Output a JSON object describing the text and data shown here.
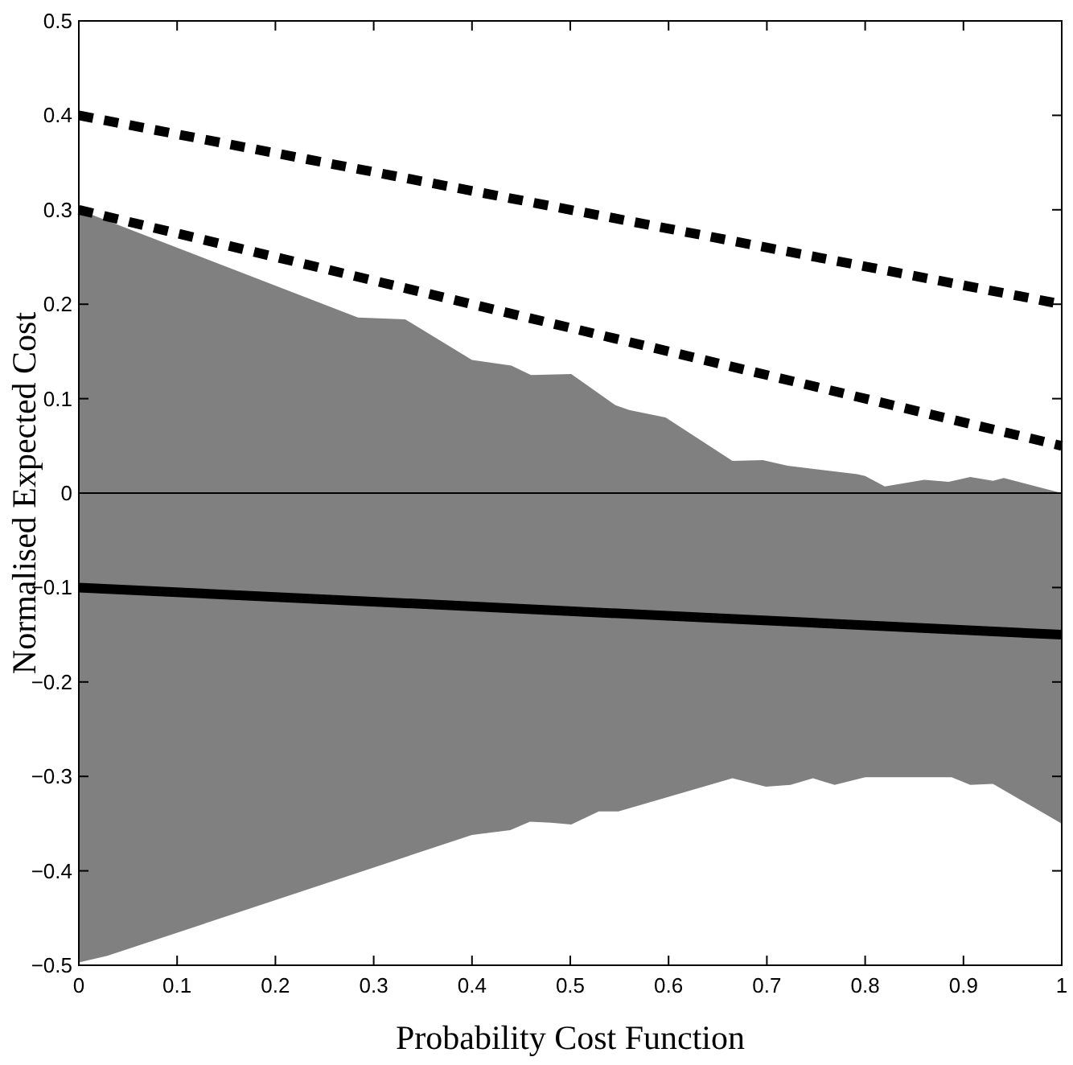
{
  "chart_data": {
    "type": "line",
    "xlabel": "Probability Cost Function",
    "ylabel": "Normalised Expected Cost",
    "xlim": [
      0,
      1
    ],
    "ylim": [
      -0.5,
      0.5
    ],
    "xticks": [
      0,
      0.1,
      0.2,
      0.3,
      0.4,
      0.5,
      0.6,
      0.7,
      0.8,
      0.9,
      1
    ],
    "yticks": [
      -0.5,
      -0.4,
      -0.3,
      -0.2,
      -0.1,
      0,
      0.1,
      0.2,
      0.3,
      0.4,
      0.5
    ],
    "grid": false,
    "series": [
      {
        "type": "area",
        "color": "#808080",
        "x": [
          0,
          0.284,
          0.332,
          0.4,
          0.44,
          0.46,
          0.501,
          0.546,
          0.56,
          0.597,
          0.665,
          0.696,
          0.721,
          0.792,
          0.8,
          0.82,
          0.837,
          0.86,
          0.885,
          0.907,
          0.93,
          0.941,
          1
        ],
        "values": [
          0.3,
          0.186,
          0.184,
          0.141,
          0.135,
          0.125,
          0.126,
          0.093,
          0.088,
          0.08,
          0.034,
          0.035,
          0.029,
          0.02,
          0.018,
          0.007,
          0.01,
          0.014,
          0.012,
          0.017,
          0.013,
          0.016,
          0
        ]
      },
      {
        "type": "area",
        "color": "#808080",
        "x": [
          0,
          0.029,
          0.4,
          0.439,
          0.459,
          0.48,
          0.501,
          0.529,
          0.549,
          0.665,
          0.699,
          0.724,
          0.747,
          0.769,
          0.8,
          0.888,
          0.907,
          0.93,
          1
        ],
        "values": [
          -0.497,
          -0.49,
          -0.362,
          -0.357,
          -0.348,
          -0.349,
          -0.351,
          -0.337,
          -0.337,
          -0.302,
          -0.311,
          -0.309,
          -0.302,
          -0.309,
          -0.301,
          -0.301,
          -0.309,
          -0.308,
          -0.35
        ]
      },
      {
        "color": "#000000",
        "line_style": "dashed",
        "x": [
          0,
          1
        ],
        "values": [
          0.4,
          0.2
        ]
      },
      {
        "color": "#000000",
        "line_style": "dashed",
        "x": [
          0,
          1
        ],
        "values": [
          0.3,
          0.05
        ]
      },
      {
        "color": "#000000",
        "line_style": "solid",
        "x": [
          0,
          1
        ],
        "values": [
          -0.1,
          -0.15
        ]
      }
    ],
    "ref_lines": [
      {
        "axis": "y",
        "value": 0,
        "color": "#000000"
      }
    ]
  }
}
